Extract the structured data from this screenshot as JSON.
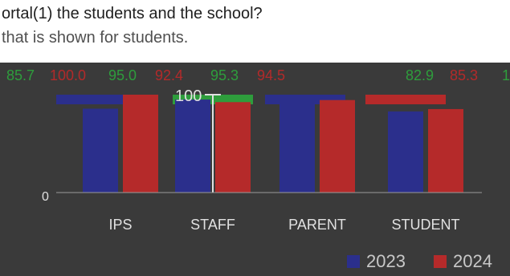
{
  "question": {
    "line1": "ortal(1) the students and the school?",
    "line2": "that is shown for students."
  },
  "colors": {
    "y2023": "#2b2f8c",
    "y2024": "#b52a2a",
    "label_low": "#2e9d3c",
    "label_high": "#b22a2a",
    "axis_text": "#e0e0e0"
  },
  "chart_data": {
    "type": "bar",
    "categories": [
      "IPS",
      "STAFF",
      "PARENT",
      "STUDENT"
    ],
    "series": [
      {
        "name": "2023",
        "values": [
          85.7,
          95.0,
          95.3,
          82.9
        ]
      },
      {
        "name": "2024",
        "values": [
          100.0,
          92.4,
          94.5,
          85.3
        ]
      }
    ],
    "labels": [
      "85.7",
      "100.0",
      "95.0",
      "92.4",
      "95.3",
      "94.5",
      "82.9",
      "85.3",
      "1"
    ],
    "yticks": [
      "100",
      "0"
    ],
    "ylim": [
      0,
      100
    ],
    "legend": {
      "position": "bottom-right",
      "items": [
        "2023",
        "2024"
      ]
    }
  }
}
